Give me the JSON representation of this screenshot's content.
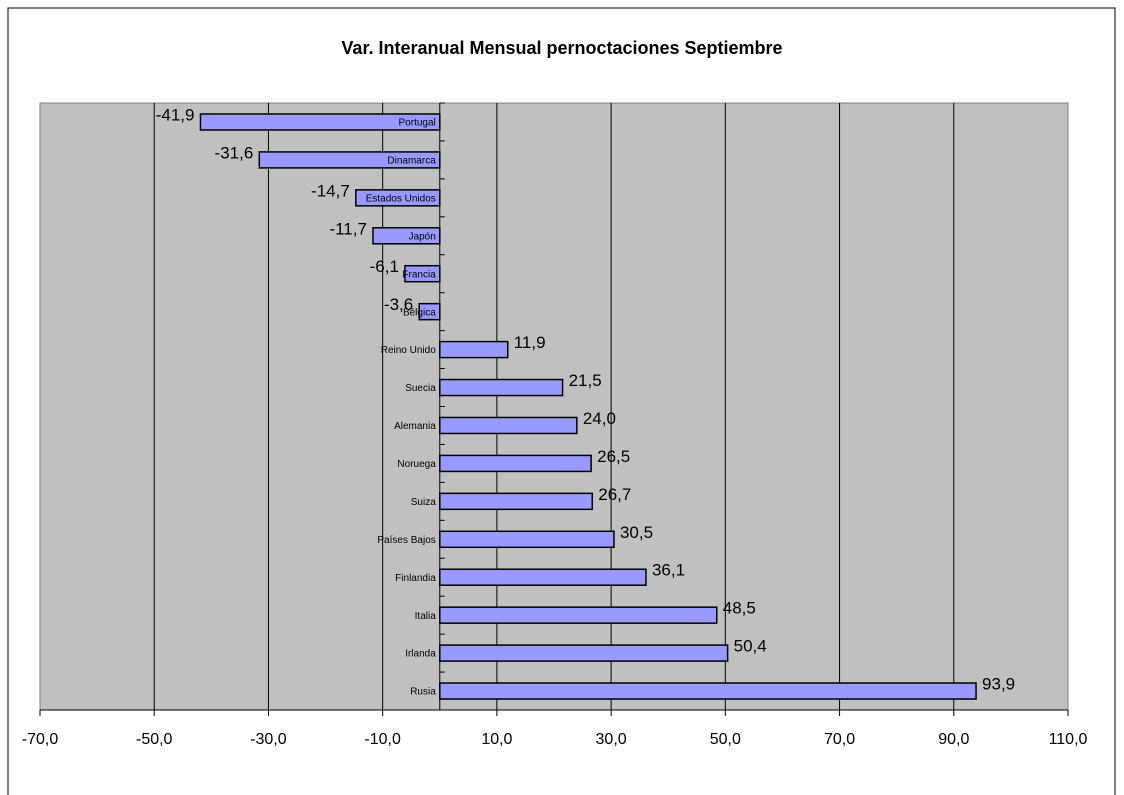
{
  "chart_data": {
    "type": "hbar",
    "title": "Var. Interanual Mensual pernoctaciones Septiembre",
    "categories": [
      "Portugal",
      "Dinamarca",
      "Estados Unidos",
      "Japón",
      "Francia",
      "Bélgica",
      "Reino Unido",
      "Suecia",
      "Alemania",
      "Noruega",
      "Suiza",
      "Países Bajos",
      "Finlandia",
      "Italia",
      "Irlanda",
      "Rusia"
    ],
    "values": [
      -41.9,
      -31.6,
      -14.7,
      -11.7,
      -6.1,
      -3.6,
      11.9,
      21.5,
      24.0,
      26.5,
      26.7,
      30.5,
      36.1,
      48.5,
      50.4,
      93.9
    ],
    "value_labels": [
      "-41,9",
      "-31,6",
      "-14,7",
      "-11,7",
      "-6,1",
      "-3,6",
      "11,9",
      "21,5",
      "24,0",
      "26,5",
      "26,7",
      "30,5",
      "36,1",
      "48,5",
      "50,4",
      "93,9"
    ],
    "color": "#9999ff",
    "xlim": [
      -70,
      110
    ],
    "xticks": [
      {
        "value": -70,
        "label": "-70,0"
      },
      {
        "value": -50,
        "label": "-50,0"
      },
      {
        "value": -30,
        "label": "-30,0"
      },
      {
        "value": -10,
        "label": "-10,0"
      },
      {
        "value": 10,
        "label": "10,0"
      },
      {
        "value": 30,
        "label": "30,0"
      },
      {
        "value": 50,
        "label": "50,0"
      },
      {
        "value": 70,
        "label": "70,0"
      },
      {
        "value": 90,
        "label": "90,0"
      },
      {
        "value": 110,
        "label": "110,0"
      }
    ],
    "grid": true
  }
}
